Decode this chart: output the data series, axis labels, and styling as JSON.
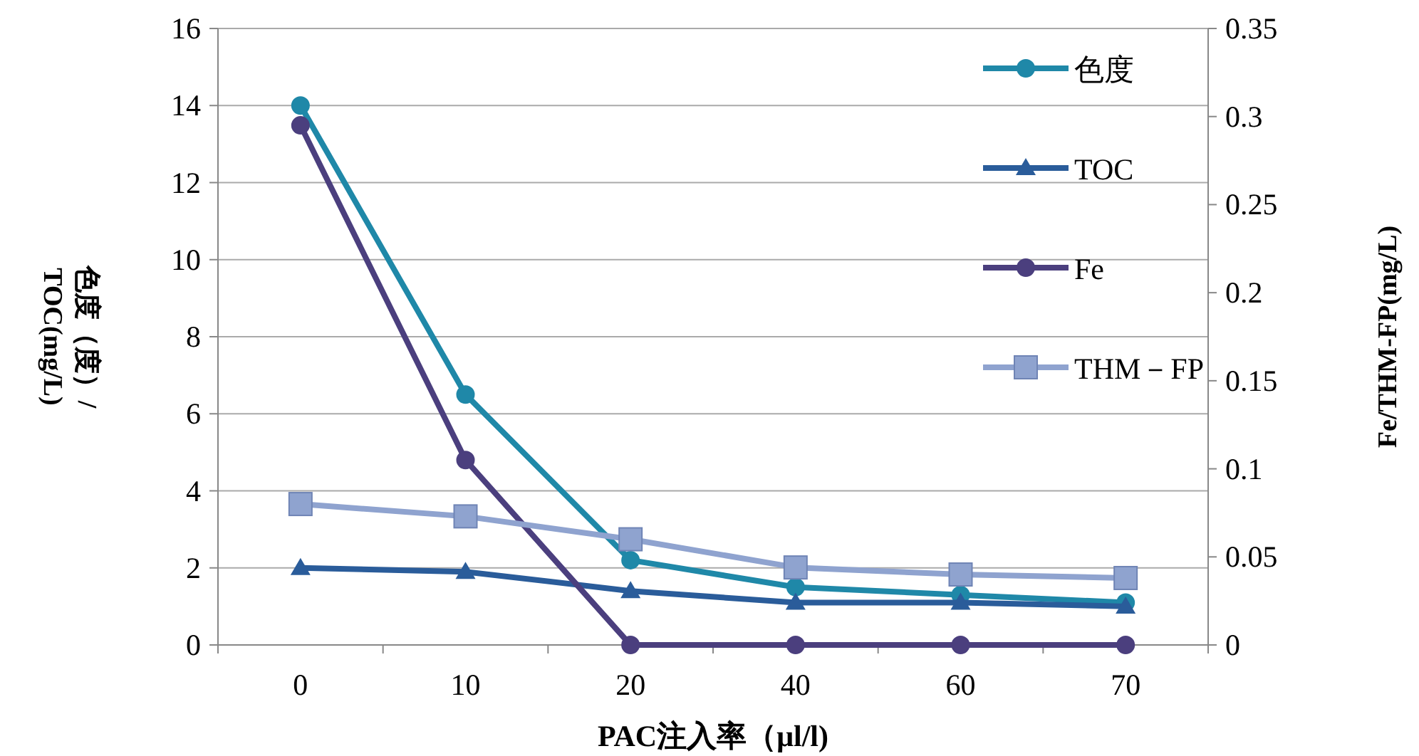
{
  "chart_data": {
    "type": "line",
    "xlabel": "PAC注入率（μl/l)",
    "ylabel": "色度（度）/\nTOC(mg/L)",
    "y2label": "Fe/THM-FP(mg/L)",
    "categories": [
      "0",
      "10",
      "20",
      "40",
      "60",
      "70"
    ],
    "series": [
      {
        "name": "色度",
        "color": "#1f88a8",
        "marker": "circle",
        "values": [
          14.0,
          6.5,
          2.2,
          1.5,
          1.3,
          1.1
        ]
      },
      {
        "name": "TOC",
        "color": "#2a5c9a",
        "marker": "triangle",
        "values": [
          2.0,
          1.9,
          1.4,
          1.1,
          1.1,
          1.0
        ]
      },
      {
        "name": "Fe",
        "color": "#4b3f7e",
        "marker": "circle",
        "axis": "y2",
        "values": [
          0.295,
          0.105,
          0,
          0,
          0,
          0
        ]
      },
      {
        "name": "THM－FP",
        "color": "#8fa3cf",
        "marker": "square",
        "axis": "y2",
        "values": [
          0.08,
          0.073,
          0.06,
          0.044,
          0.04,
          0.038
        ]
      }
    ],
    "ylim": [
      0,
      16
    ],
    "yticks": [
      0,
      2,
      4,
      6,
      8,
      10,
      12,
      14,
      16
    ],
    "y2lim": [
      0,
      0.35
    ],
    "y2ticks": [
      0,
      0.05,
      {
        "value": 0.1,
        "label": "0.1"
      },
      0.15,
      {
        "value": 0.2,
        "label": "0.2"
      },
      0.25,
      {
        "value": 0.3,
        "label": "0.3"
      },
      0.35
    ],
    "grid": "y",
    "legend": "top right",
    "line_style": "solid"
  }
}
